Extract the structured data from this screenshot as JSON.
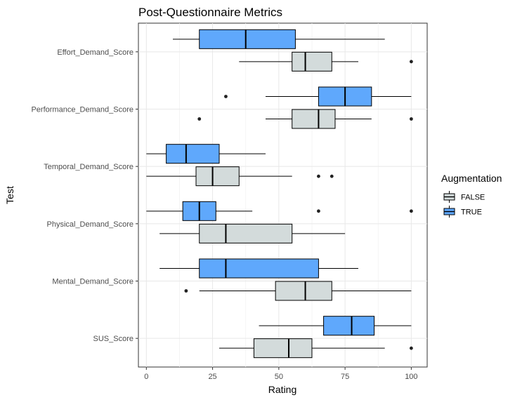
{
  "chart_data": {
    "type": "boxplot",
    "orientation": "horizontal",
    "title": "Post-Questionnaire Metrics",
    "xlabel": "Rating",
    "ylabel": "Test",
    "xlim": [
      -3,
      106
    ],
    "x_ticks": [
      "0",
      "25",
      "50",
      "75",
      "100"
    ],
    "grid": true,
    "legend": {
      "title": "Augmentation",
      "placement": "right",
      "entries": [
        {
          "label": "FALSE",
          "color": "#d3dbdb"
        },
        {
          "label": "TRUE",
          "color": "#5fa8fc"
        }
      ]
    },
    "categories": [
      "Effort_Demand_Score",
      "Performance_Demand_Score",
      "Temporal_Demand_Score",
      "Physical_Demand_Score",
      "Mental_Demand_Score",
      "SUS_Score"
    ],
    "series": [
      {
        "name": "FALSE",
        "color": "#d3dbdb",
        "boxes": [
          {
            "category": "Effort_Demand_Score",
            "whisker_low": 35,
            "q1": 55,
            "median": 60,
            "q3": 70,
            "whisker_high": 80,
            "outliers": [
              100
            ]
          },
          {
            "category": "Performance_Demand_Score",
            "whisker_low": 45,
            "q1": 55,
            "median": 65,
            "q3": 71.25,
            "whisker_high": 85,
            "outliers": [
              20,
              100
            ]
          },
          {
            "category": "Temporal_Demand_Score",
            "whisker_low": 0,
            "q1": 18.75,
            "median": 25,
            "q3": 35,
            "whisker_high": 55,
            "outliers": [
              65,
              70
            ]
          },
          {
            "category": "Physical_Demand_Score",
            "whisker_low": 5,
            "q1": 20,
            "median": 30,
            "q3": 55,
            "whisker_high": 75,
            "outliers": []
          },
          {
            "category": "Mental_Demand_Score",
            "whisker_low": 20,
            "q1": 48.75,
            "median": 60,
            "q3": 70,
            "whisker_high": 100,
            "outliers": [
              15
            ]
          },
          {
            "category": "SUS_Score",
            "whisker_low": 27.5,
            "q1": 40.6,
            "median": 53.75,
            "q3": 62.5,
            "whisker_high": 90,
            "outliers": [
              100
            ]
          }
        ]
      },
      {
        "name": "TRUE",
        "color": "#5fa8fc",
        "boxes": [
          {
            "category": "Effort_Demand_Score",
            "whisker_low": 10,
            "q1": 20,
            "median": 37.5,
            "q3": 56.25,
            "whisker_high": 90,
            "outliers": []
          },
          {
            "category": "Performance_Demand_Score",
            "whisker_low": 45,
            "q1": 65,
            "median": 75,
            "q3": 85,
            "whisker_high": 100,
            "outliers": [
              30
            ]
          },
          {
            "category": "Temporal_Demand_Score",
            "whisker_low": 0,
            "q1": 7.5,
            "median": 15,
            "q3": 27.5,
            "whisker_high": 45,
            "outliers": []
          },
          {
            "category": "Physical_Demand_Score",
            "whisker_low": 0,
            "q1": 13.75,
            "median": 20,
            "q3": 26.25,
            "whisker_high": 40,
            "outliers": [
              65,
              100
            ]
          },
          {
            "category": "Mental_Demand_Score",
            "whisker_low": 5,
            "q1": 20,
            "median": 30,
            "q3": 65,
            "whisker_high": 80,
            "outliers": []
          },
          {
            "category": "SUS_Score",
            "whisker_low": 42.5,
            "q1": 66.9,
            "median": 77.5,
            "q3": 86,
            "whisker_high": 100,
            "outliers": []
          }
        ]
      }
    ]
  }
}
